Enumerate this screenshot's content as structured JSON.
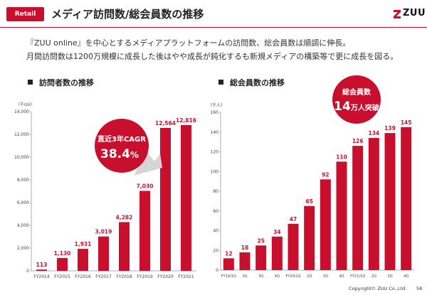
{
  "header": {
    "badge": "Retail",
    "title": "メディア訪問数/総会員数の推移",
    "logo_text": "ZUU"
  },
  "lead": {
    "line1": "『ZUU online』を中心とするメディアプラットフォームの訪問数、総会員数は順調に伸長。",
    "line2": "月間訪問数は1200万規模に成長した後はやや成長が鈍化するも新規メディアの構築等で更に成長を図る。"
  },
  "sections": {
    "left": "訪問者数の推移",
    "right": "総会員数の推移"
  },
  "colors": {
    "accent": "#c8102e",
    "bar": "#c8102e",
    "text": "#333333"
  },
  "chart_data": [
    {
      "type": "bar",
      "title": "訪問者数の推移",
      "ylabel": "（千UU）",
      "categories": [
        "FY2014",
        "FY2015",
        "FY2016",
        "FY2017",
        "FY2018",
        "FY2019",
        "FY2020",
        "FY2021"
      ],
      "values": [
        113,
        1130,
        1931,
        3019,
        4282,
        7030,
        12564,
        12816
      ],
      "value_labels": [
        "113",
        "1,130",
        "1,931",
        "3,019",
        "4,282",
        "7,030",
        "12,564",
        "12,816"
      ],
      "ylim": [
        0,
        14000
      ],
      "yticks": [
        "0",
        "2,000",
        "4,000",
        "6,000",
        "8,000",
        "10,000",
        "12,000",
        "14,000"
      ],
      "grid": false,
      "annotation": {
        "line1": "直近3年CAGR",
        "line2_value": "38.4",
        "line2_unit": "%"
      }
    },
    {
      "type": "bar",
      "title": "総会員数の推移",
      "ylabel": "（千人）",
      "categories": [
        "FY19/1Q",
        "2Q",
        "3Q",
        "4Q",
        "FY20/1Q",
        "2Q",
        "3Q",
        "4Q",
        "FY21/1Q",
        "2Q",
        "3Q",
        "4Q"
      ],
      "values": [
        12,
        18,
        25,
        34,
        47,
        65,
        92,
        110,
        126,
        134,
        139,
        145
      ],
      "value_labels": [
        "12",
        "18",
        "25",
        "34",
        "47",
        "65",
        "92",
        "110",
        "126",
        "134",
        "139",
        "145"
      ],
      "ylim": [
        0,
        160
      ],
      "yticks": [
        "0",
        "20",
        "40",
        "60",
        "80",
        "100",
        "120",
        "140",
        "160"
      ],
      "grid": false,
      "annotation": {
        "line1": "総会員数",
        "line2_value": "14",
        "line2_unit": "万人突破"
      }
    }
  ],
  "footer": {
    "copyright": "Copyright© ZUU Co.,Ltd.",
    "page": "58"
  }
}
